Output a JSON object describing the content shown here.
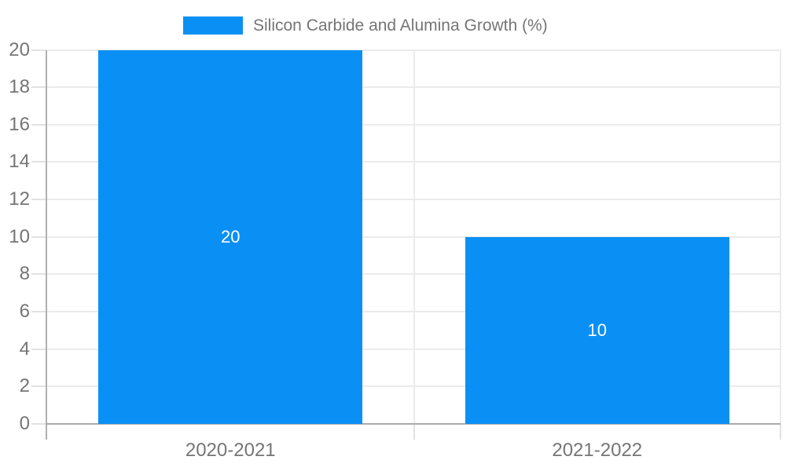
{
  "legend": {
    "label": "Silicon Carbide and Alumina Growth (%)"
  },
  "chart_data": {
    "type": "bar",
    "title": "Silicon Carbide and Alumina Growth (%)",
    "categories": [
      "2020-2021",
      "2021-2022"
    ],
    "series": [
      {
        "name": "Silicon Carbide and Alumina Growth (%)",
        "values": [
          20,
          10
        ]
      }
    ],
    "bar_labels": [
      "20",
      "10"
    ],
    "xlabel": "",
    "ylabel": "",
    "ylim": [
      0,
      20
    ],
    "yticks": [
      0,
      2,
      4,
      6,
      8,
      10,
      12,
      14,
      16,
      18,
      20
    ],
    "grid": true,
    "legend_position": "top",
    "colors": {
      "bar": "#0a90f5",
      "grid": "#ebebeb",
      "tick": "#e2e2e2",
      "axis_line": "#b0b0b0",
      "baseline": "#ababab",
      "axis_text": "#757575",
      "bar_label_text": "#ffffff",
      "background": "#ffffff"
    }
  }
}
